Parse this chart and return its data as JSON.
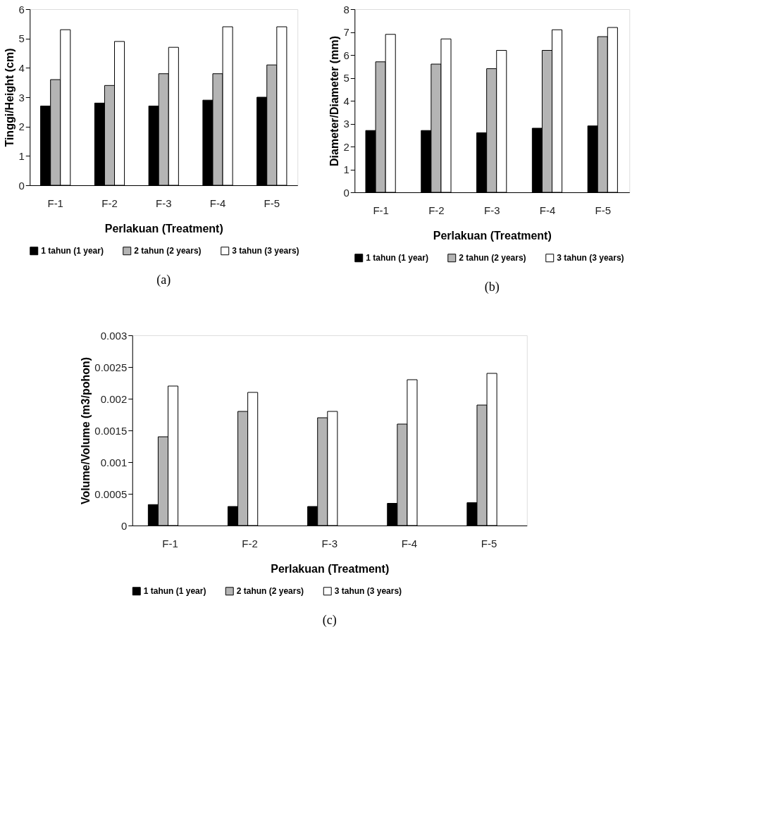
{
  "chart_data": [
    {
      "type": "bar",
      "xlabel": "Perlakuan (Treatment)",
      "ylabel": "Tinggi/Height (cm)",
      "categories": [
        "F-1",
        "F-2",
        "F-3",
        "F-4",
        "F-5"
      ],
      "series": [
        {
          "name": "1 tahun (1 year)",
          "color": "#000000",
          "values": [
            2.7,
            2.8,
            2.7,
            2.9,
            3.0
          ]
        },
        {
          "name": "2 tahun (2 years)",
          "color": "#b4b4b4",
          "values": [
            3.6,
            3.4,
            3.8,
            3.8,
            4.1
          ]
        },
        {
          "name": "3 tahun (3 years)",
          "color": "#ffffff",
          "values": [
            5.3,
            4.9,
            4.7,
            5.4,
            5.4
          ]
        }
      ],
      "ylim": [
        0,
        6
      ],
      "yticks": [
        0,
        1,
        2,
        3,
        4,
        5,
        6
      ],
      "grid": false,
      "legend": "bottom",
      "annotations": [
        "(a)"
      ]
    },
    {
      "type": "bar",
      "xlabel": "Perlakuan (Treatment)",
      "ylabel": "Diameter/Diameter (mm)",
      "categories": [
        "F-1",
        "F-2",
        "F-3",
        "F-4",
        "F-5"
      ],
      "series": [
        {
          "name": "1 tahun (1 year)",
          "color": "#000000",
          "values": [
            2.7,
            2.7,
            2.6,
            2.8,
            2.9
          ]
        },
        {
          "name": "2 tahun (2 years)",
          "color": "#b4b4b4",
          "values": [
            5.7,
            5.6,
            5.4,
            6.2,
            6.8
          ]
        },
        {
          "name": "3 tahun (3 years)",
          "color": "#ffffff",
          "values": [
            6.9,
            6.7,
            6.2,
            7.1,
            7.2
          ]
        }
      ],
      "ylim": [
        0,
        8
      ],
      "yticks": [
        0,
        1,
        2,
        3,
        4,
        5,
        6,
        7,
        8
      ],
      "grid": false,
      "legend": "bottom",
      "annotations": [
        "(b)"
      ]
    },
    {
      "type": "bar",
      "xlabel": "Perlakuan (Treatment)",
      "ylabel": "Volume/Volume (m3/pohon)",
      "categories": [
        "F-1",
        "F-2",
        "F-3",
        "F-4",
        "F-5"
      ],
      "series": [
        {
          "name": "1 tahun (1 year)",
          "color": "#000000",
          "values": [
            0.00033,
            0.0003,
            0.0003,
            0.00035,
            0.00036
          ]
        },
        {
          "name": "2 tahun (2 years)",
          "color": "#b4b4b4",
          "values": [
            0.0014,
            0.0018,
            0.0017,
            0.0016,
            0.0019
          ]
        },
        {
          "name": "3 tahun (3 years)",
          "color": "#ffffff",
          "values": [
            0.0022,
            0.0021,
            0.0018,
            0.0023,
            0.0024
          ]
        }
      ],
      "ylim": [
        0,
        0.003
      ],
      "yticks": [
        0,
        0.0005,
        0.001,
        0.0015,
        0.002,
        0.0025,
        0.003
      ],
      "grid": false,
      "legend": "bottom",
      "annotations": [
        "(c)"
      ]
    }
  ]
}
